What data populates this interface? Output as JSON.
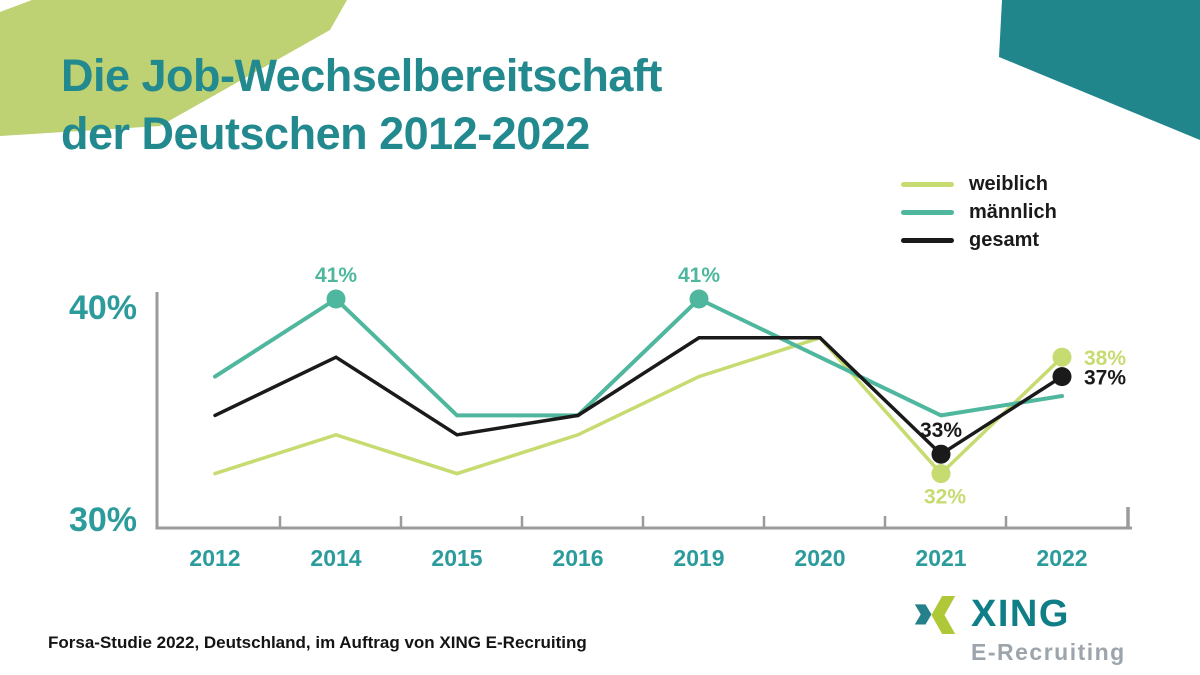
{
  "title": {
    "line1": "Die Job-Wechselbereitschaft",
    "line2": "der Deutschen 2012-2022"
  },
  "legend": {
    "items": [
      {
        "label": "weiblich",
        "color": "#C6DB70"
      },
      {
        "label": "männlich",
        "color": "#4FB79D"
      },
      {
        "label": "gesamt",
        "color": "#1A1A1A"
      }
    ]
  },
  "chart_data": {
    "type": "line",
    "title": "Die Job-Wechselbereitschaft der Deutschen 2012-2022",
    "unit": "%",
    "categories": [
      "2012",
      "2014",
      "2015",
      "2016",
      "2019",
      "2020",
      "2021",
      "2022"
    ],
    "series": [
      {
        "name": "weiblich",
        "color": "#C6DB70",
        "values": [
          32,
          34,
          32,
          34,
          37,
          39,
          32,
          38
        ]
      },
      {
        "name": "männlich",
        "color": "#4FB79D",
        "values": [
          37,
          41,
          35,
          35,
          41,
          38,
          35,
          36
        ]
      },
      {
        "name": "gesamt",
        "color": "#1A1A1A",
        "values": [
          35,
          38,
          34,
          35,
          39,
          39,
          33,
          37
        ]
      }
    ],
    "annotations": [
      {
        "series": "männlich",
        "category": "2014",
        "label": "41%",
        "placement": "above"
      },
      {
        "series": "männlich",
        "category": "2019",
        "label": "41%",
        "placement": "above"
      },
      {
        "series": "gesamt",
        "category": "2021",
        "label": "33%",
        "placement": "above"
      },
      {
        "series": "weiblich",
        "category": "2021",
        "label": "32%",
        "placement": "below"
      },
      {
        "series": "weiblich",
        "category": "2022",
        "label": "38%",
        "placement": "right"
      },
      {
        "series": "gesamt",
        "category": "2022",
        "label": "37%",
        "placement": "right"
      }
    ],
    "y_axis": {
      "ticks": [
        {
          "value": 40,
          "label": "40%"
        },
        {
          "value": 30,
          "label": "30%"
        }
      ],
      "range": [
        29.5,
        41.5
      ]
    },
    "grid": false,
    "legend_position": "top-right"
  },
  "footer": {
    "source": "Forsa-Studie 2022, Deutschland, im Auftrag von XING E-Recruiting"
  },
  "logo": {
    "brand": "XING",
    "subbrand": "E-Recruiting"
  },
  "colors": {
    "title": "#22898E",
    "axis": "#9B9B9B",
    "axis_labels": "#2B9B9C",
    "decor_green": "#BED173",
    "decor_teal": "#20868C",
    "logo_teal": "#0F7E87",
    "logo_gray": "#9CA4AC",
    "logo_x_teal": "#26808A",
    "logo_x_green": "#AFC838"
  }
}
